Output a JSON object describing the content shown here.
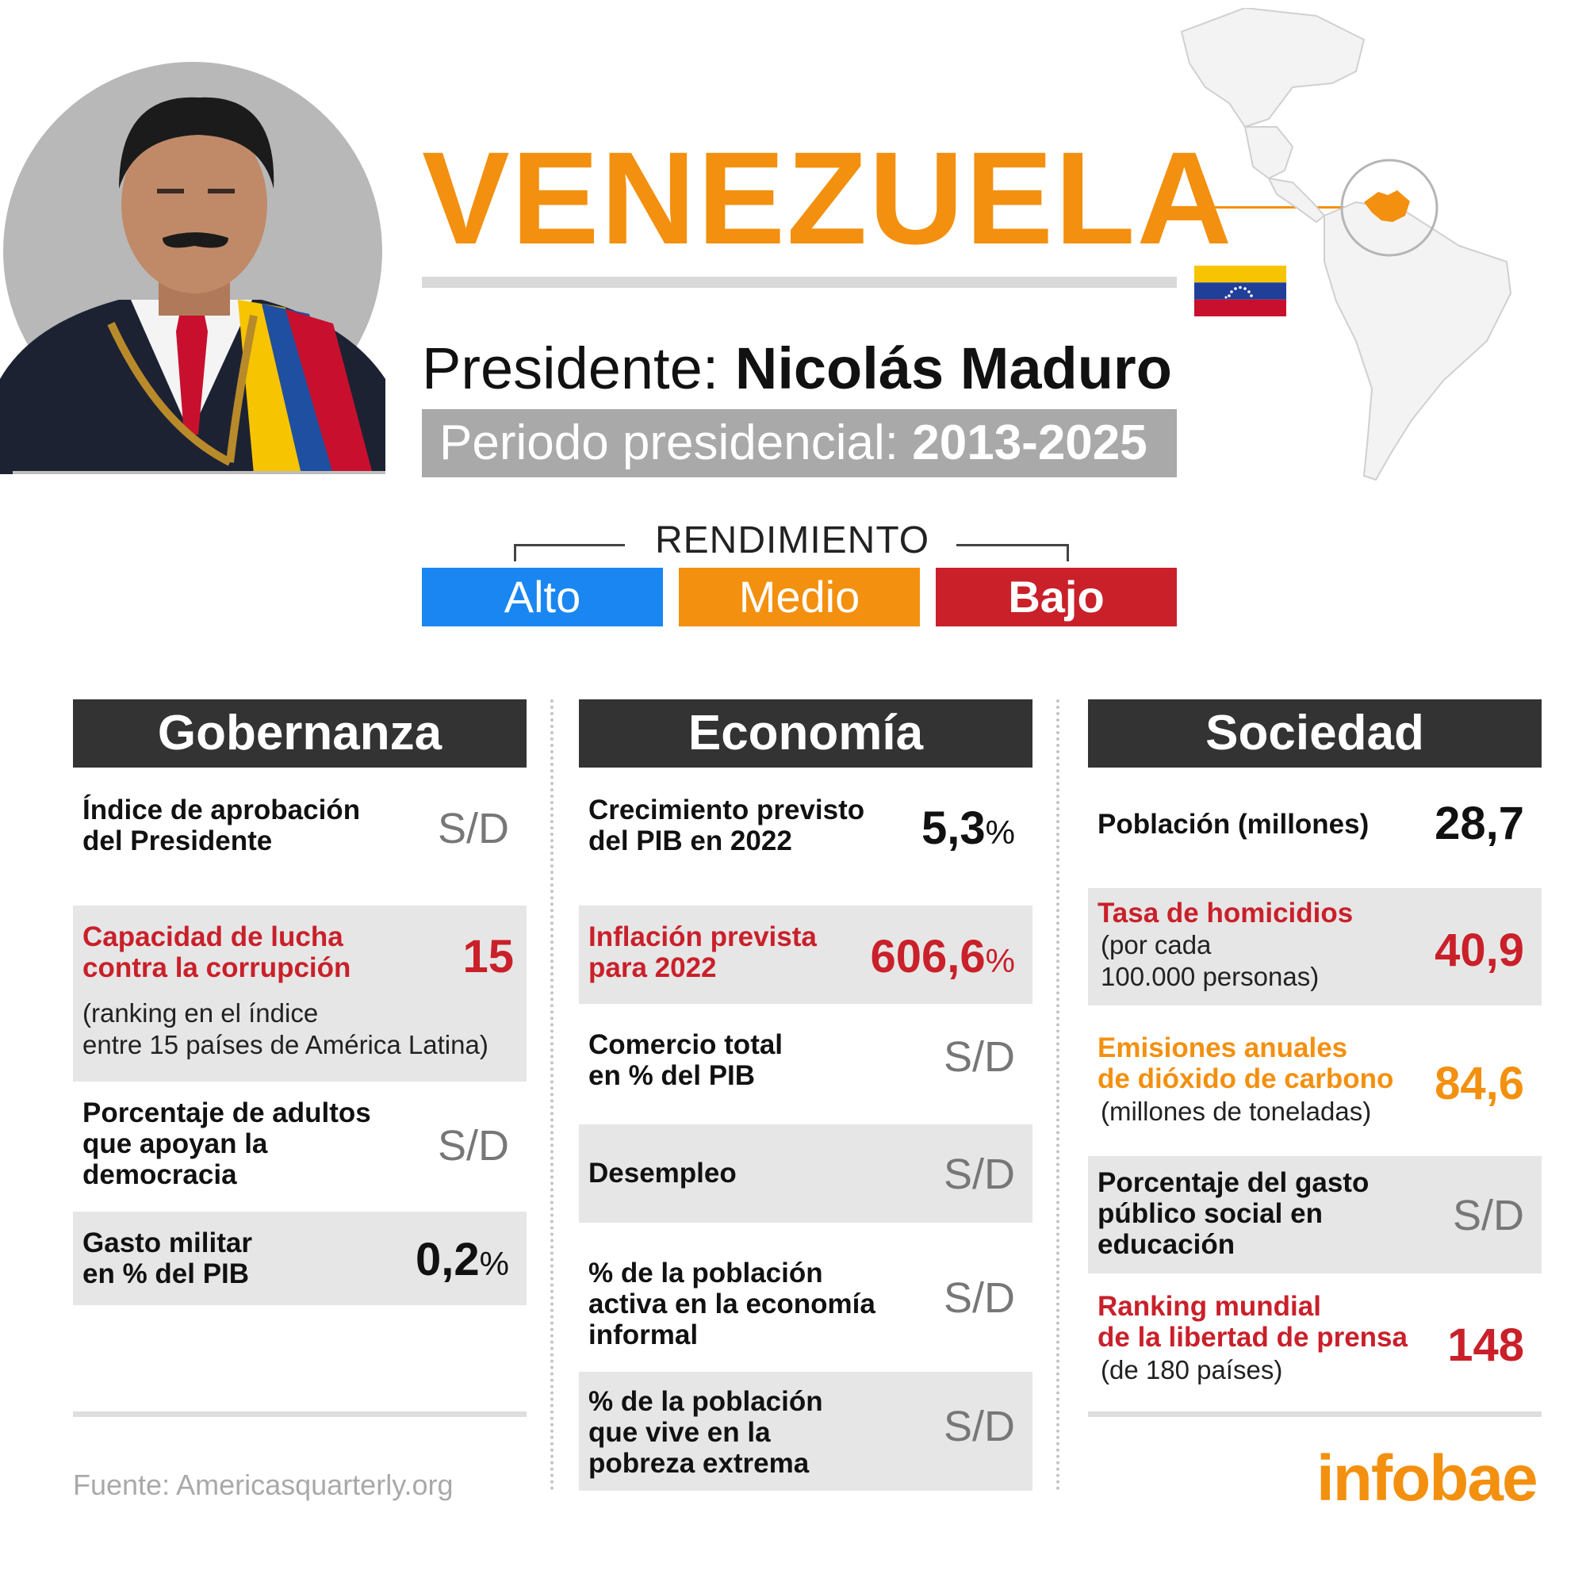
{
  "header": {
    "country": "VENEZUELA",
    "president_label": "Presidente: ",
    "president_name": "Nicolás Maduro",
    "period_label": "Periodo presidencial: ",
    "period_value": "2013-2025"
  },
  "legend": {
    "title": "RENDIMIENTO",
    "alto": "Alto",
    "medio": "Medio",
    "bajo": "Bajo",
    "colors": {
      "alto": "#1a86f2",
      "medio": "#f3900f",
      "bajo": "#c9202a"
    }
  },
  "columns": {
    "gobernanza": {
      "title": "Gobernanza",
      "r1": {
        "label1": "Índice de aprobación",
        "label2": "del Presidente",
        "value": "S/D"
      },
      "r2": {
        "label1": "Capacidad de lucha",
        "label2": "contra la corrupción",
        "value": "15",
        "sub1": "(ranking en el índice",
        "sub2": "entre 15 países de América Latina)"
      },
      "r3": {
        "label1": "Porcentaje de adultos",
        "label2": "que apoyan la",
        "label3": "democracia",
        "value": "S/D"
      },
      "r4": {
        "label1": "Gasto militar",
        "label2": "en % del PIB",
        "value": "0,2",
        "unit": "%"
      }
    },
    "economia": {
      "title": "Economía",
      "r1": {
        "label1": "Crecimiento previsto",
        "label2": "del PIB en 2022",
        "value": "5,3",
        "unit": "%"
      },
      "r2": {
        "label1": "Inflación prevista",
        "label2": "para 2022",
        "value": "606,6",
        "unit": "%"
      },
      "r3": {
        "label1": "Comercio total",
        "label2": "en % del PIB",
        "value": "S/D"
      },
      "r4": {
        "label1": "Desempleo",
        "value": "S/D"
      },
      "r5": {
        "label1": "% de la población",
        "label2": "activa en la economía",
        "label3": "informal",
        "value": "S/D"
      },
      "r6": {
        "label1": "% de la población",
        "label2": "que vive en la",
        "label3": "pobreza extrema",
        "value": "S/D"
      }
    },
    "sociedad": {
      "title": "Sociedad",
      "r1": {
        "label1": "Población (millones)",
        "value": "28,7"
      },
      "r2": {
        "label1": "Tasa de homicidios",
        "sub1": "(por cada",
        "sub2": "100.000 personas)",
        "value": "40,9"
      },
      "r3": {
        "label1": "Emisiones anuales",
        "label2": "de dióxido de carbono",
        "sub1": "(millones de toneladas)",
        "value": "84,6"
      },
      "r4": {
        "label1": "Porcentaje del gasto",
        "label2": "público social en",
        "label3": "educación",
        "value": "S/D"
      },
      "r5": {
        "label1": "Ranking mundial",
        "label2": "de la libertad de prensa",
        "sub1": "(de 180 países)",
        "value": "148"
      }
    }
  },
  "footer": {
    "source": "Fuente: Americasquarterly.org",
    "brand": "infobae"
  }
}
